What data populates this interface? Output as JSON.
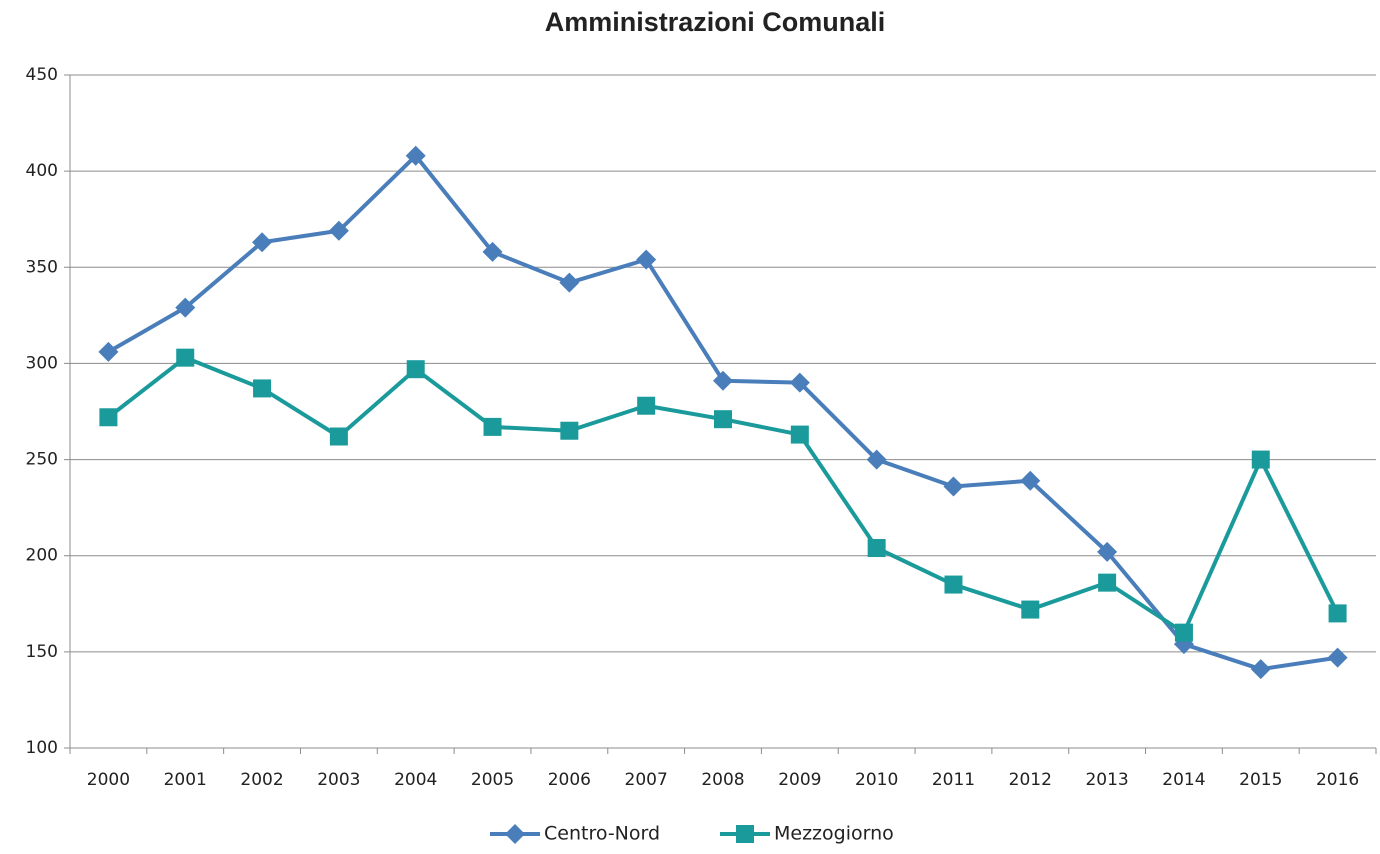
{
  "chart_data": {
    "type": "line",
    "title": "Amministrazioni Comunali",
    "categories": [
      "2000",
      "2001",
      "2002",
      "2003",
      "2004",
      "2005",
      "2006",
      "2007",
      "2008",
      "2009",
      "2010",
      "2011",
      "2012",
      "2013",
      "2014",
      "2015",
      "2016"
    ],
    "series": [
      {
        "name": "Centro-Nord",
        "color": "#4a7ebb",
        "marker": "diamond",
        "values": [
          306,
          329,
          363,
          369,
          408,
          358,
          342,
          354,
          291,
          290,
          250,
          236,
          239,
          202,
          154,
          141,
          147
        ]
      },
      {
        "name": "Mezzogiorno",
        "color": "#1a9a9a",
        "marker": "square",
        "values": [
          272,
          303,
          287,
          262,
          297,
          267,
          265,
          278,
          271,
          263,
          204,
          185,
          172,
          186,
          160,
          250,
          170
        ]
      }
    ],
    "ylim": [
      100,
      450
    ],
    "yticks": [
      100,
      150,
      200,
      250,
      300,
      350,
      400,
      450
    ],
    "grid": true,
    "legend": "bottom"
  }
}
